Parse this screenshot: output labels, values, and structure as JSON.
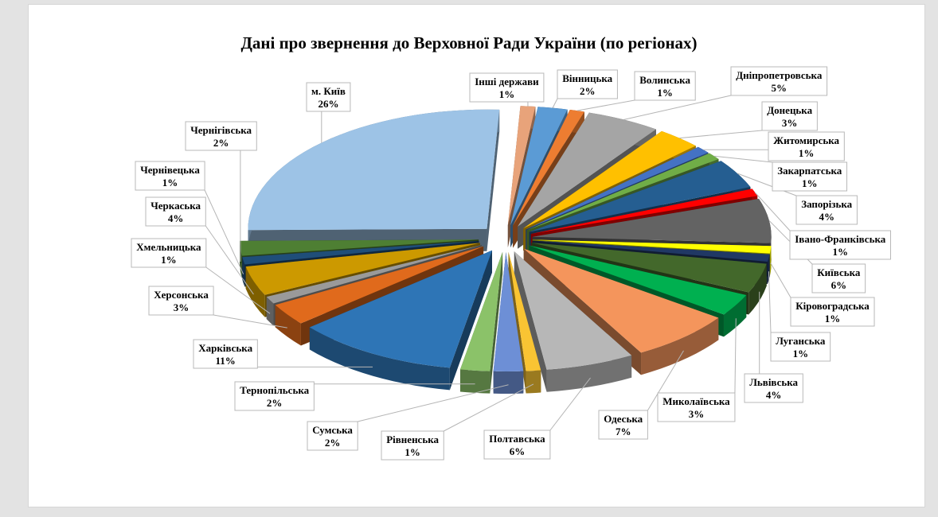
{
  "chart_data": {
    "type": "pie",
    "title": "Дані про звернення до Верховної Ради України (по регіонах)",
    "style": "3d-exploded",
    "slices": [
      {
        "name": "Інші держави",
        "label": "1%",
        "value": 1,
        "color": "#e8a37a"
      },
      {
        "name": "Вінницька",
        "label": "2%",
        "value": 2,
        "color": "#5b9bd5"
      },
      {
        "name": "Волинська",
        "label": "1%",
        "value": 1,
        "color": "#ed7d31"
      },
      {
        "name": "Дніпропетровська",
        "label": "5%",
        "value": 5,
        "color": "#a5a5a5"
      },
      {
        "name": "Донецька",
        "label": "3%",
        "value": 3,
        "color": "#ffc000"
      },
      {
        "name": "Житомирська",
        "label": "1%",
        "value": 1,
        "color": "#4472c4"
      },
      {
        "name": "Закарпатська",
        "label": "1%",
        "value": 1,
        "color": "#70ad47"
      },
      {
        "name": "Запорізька",
        "label": "4%",
        "value": 4,
        "color": "#255e91"
      },
      {
        "name": "Івано-Франківська",
        "label": "1%",
        "value": 1,
        "color": "#ff0000"
      },
      {
        "name": "Київська",
        "label": "6%",
        "value": 6,
        "color": "#636363"
      },
      {
        "name": "Кіровоградська",
        "label": "1%",
        "value": 1,
        "color": "#ffff00"
      },
      {
        "name": "Луганська",
        "label": "1%",
        "value": 1,
        "color": "#203864"
      },
      {
        "name": "Львівська",
        "label": "4%",
        "value": 4,
        "color": "#43682b"
      },
      {
        "name": "Миколаївська",
        "label": "3%",
        "value": 3,
        "color": "#00b050"
      },
      {
        "name": "Одеська",
        "label": "7%",
        "value": 7,
        "color": "#f4955c"
      },
      {
        "name": "Полтавська",
        "label": "6%",
        "value": 6,
        "color": "#b7b7b7"
      },
      {
        "name": "Рівненська",
        "label": "1%",
        "value": 1,
        "color": "#f9c433"
      },
      {
        "name": "Сумська",
        "label": "2%",
        "value": 2,
        "color": "#6d8fd6"
      },
      {
        "name": "Тернопільська",
        "label": "2%",
        "value": 2,
        "color": "#8bc269"
      },
      {
        "name": "Харківська",
        "label": "11%",
        "value": 11,
        "color": "#2e75b6"
      },
      {
        "name": "Херсонська",
        "label": "3%",
        "value": 3,
        "color": "#e06a1c"
      },
      {
        "name": "Хмельницька",
        "label": "1%",
        "value": 1,
        "color": "#9a9a9a"
      },
      {
        "name": "Черкаська",
        "label": "4%",
        "value": 4,
        "color": "#cc9900"
      },
      {
        "name": "Чернівецька",
        "label": "1%",
        "value": 1,
        "color": "#1f4e79"
      },
      {
        "name": "Чернігівська",
        "label": "2%",
        "value": 2,
        "color": "#4e7f33"
      },
      {
        "name": "м. Київ",
        "label": "26%",
        "value": 26,
        "color": "#9dc3e6"
      }
    ],
    "legend": "none",
    "data_labels": "outside-callouts"
  }
}
